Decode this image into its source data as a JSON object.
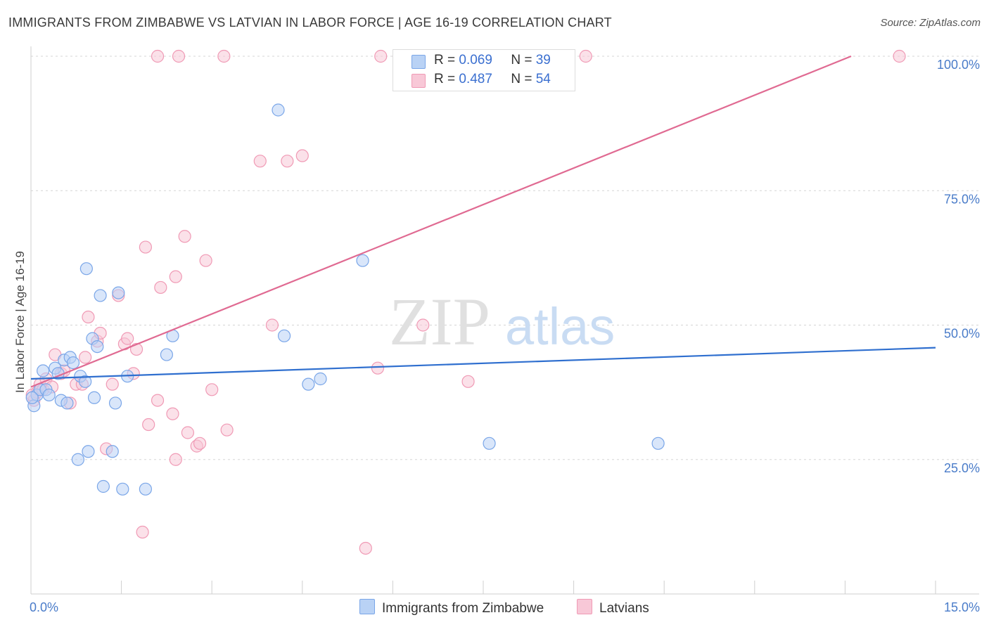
{
  "title": "IMMIGRANTS FROM ZIMBABWE VS LATVIAN IN LABOR FORCE | AGE 16-19 CORRELATION CHART",
  "source": "Source: ZipAtlas.com",
  "watermark": {
    "zip": "ZIP",
    "atlas": "atlas"
  },
  "colors": {
    "blue": "#7aa6e8",
    "blue_fill": "#b9d2f5",
    "blue_line": "#2f6fcf",
    "pink": "#f09ab5",
    "pink_fill": "#f8c8d7",
    "pink_line": "#e06a92"
  },
  "legend": [
    {
      "r_label": "R =",
      "r_value": "0.069",
      "n_label": "N =",
      "n_value": "39"
    },
    {
      "r_label": "R =",
      "r_value": "0.487",
      "n_label": "N =",
      "n_value": "54"
    }
  ],
  "bottom_legend": [
    "Immigrants from Zimbabwe",
    "Latvians"
  ],
  "chart_data": {
    "type": "scatter",
    "title": "IMMIGRANTS FROM ZIMBABWE VS LATVIAN IN LABOR FORCE | AGE 16-19 CORRELATION CHART",
    "xlabel": "",
    "ylabel": "In Labor Force | Age 16-19",
    "xlim": [
      0,
      15
    ],
    "ylim": [
      0,
      100
    ],
    "x_tick_labels": [
      "0.0%",
      "15.0%"
    ],
    "y_ticks": [
      25,
      50,
      75,
      100
    ],
    "y_tick_labels": [
      "25.0%",
      "50.0%",
      "75.0%",
      "100.0%"
    ],
    "grid": true,
    "legend_position": "top-center",
    "series": [
      {
        "name": "Immigrants from Zimbabwe",
        "trend": {
          "x": [
            0,
            15
          ],
          "y": [
            40.0,
            45.8
          ]
        },
        "points": [
          [
            0.05,
            35.0
          ],
          [
            0.1,
            37.0
          ],
          [
            0.15,
            38.0
          ],
          [
            0.2,
            41.5
          ],
          [
            0.25,
            38.0
          ],
          [
            0.3,
            37.0
          ],
          [
            0.4,
            42.0
          ],
          [
            0.45,
            41.0
          ],
          [
            0.5,
            36.0
          ],
          [
            0.55,
            43.5
          ],
          [
            0.6,
            35.5
          ],
          [
            0.65,
            44.0
          ],
          [
            0.7,
            43.0
          ],
          [
            0.78,
            25.0
          ],
          [
            0.82,
            40.5
          ],
          [
            0.9,
            39.5
          ],
          [
            0.92,
            60.5
          ],
          [
            0.95,
            26.5
          ],
          [
            1.05,
            36.5
          ],
          [
            1.02,
            47.5
          ],
          [
            1.1,
            46.0
          ],
          [
            1.15,
            55.5
          ],
          [
            1.2,
            20.0
          ],
          [
            1.35,
            26.5
          ],
          [
            1.4,
            35.5
          ],
          [
            1.45,
            56.0
          ],
          [
            1.52,
            19.5
          ],
          [
            1.6,
            40.5
          ],
          [
            1.9,
            19.5
          ],
          [
            2.25,
            44.5
          ],
          [
            2.35,
            48.0
          ],
          [
            4.1,
            90.0
          ],
          [
            4.2,
            48.0
          ],
          [
            4.6,
            39.0
          ],
          [
            4.8,
            40.0
          ],
          [
            5.5,
            62.0
          ],
          [
            7.6,
            28.0
          ],
          [
            10.4,
            28.0
          ],
          [
            0.02,
            36.5
          ]
        ]
      },
      {
        "name": "Latvians",
        "trend": {
          "x": [
            0,
            13.6
          ],
          "y": [
            38.5,
            100
          ]
        },
        "points": [
          [
            0.05,
            36.0
          ],
          [
            0.1,
            37.5
          ],
          [
            0.15,
            39.0
          ],
          [
            0.2,
            38.0
          ],
          [
            0.25,
            40.0
          ],
          [
            0.35,
            38.5
          ],
          [
            0.4,
            44.5
          ],
          [
            0.5,
            41.0
          ],
          [
            0.55,
            41.5
          ],
          [
            0.65,
            35.5
          ],
          [
            0.75,
            39.0
          ],
          [
            0.85,
            39.0
          ],
          [
            0.9,
            44.0
          ],
          [
            0.95,
            51.5
          ],
          [
            1.1,
            47.0
          ],
          [
            1.15,
            48.5
          ],
          [
            1.25,
            27.0
          ],
          [
            1.35,
            39.0
          ],
          [
            1.45,
            55.5
          ],
          [
            1.55,
            46.5
          ],
          [
            1.6,
            47.5
          ],
          [
            1.7,
            41.0
          ],
          [
            1.75,
            45.5
          ],
          [
            1.85,
            11.5
          ],
          [
            1.9,
            64.5
          ],
          [
            1.95,
            31.5
          ],
          [
            2.1,
            36.0
          ],
          [
            2.15,
            57.0
          ],
          [
            2.35,
            33.5
          ],
          [
            2.4,
            59.0
          ],
          [
            2.4,
            25.0
          ],
          [
            2.55,
            66.5
          ],
          [
            2.6,
            30.0
          ],
          [
            2.75,
            27.5
          ],
          [
            2.8,
            28.0
          ],
          [
            2.9,
            62.0
          ],
          [
            3.0,
            38.0
          ],
          [
            3.25,
            30.5
          ],
          [
            3.8,
            80.5
          ],
          [
            4.0,
            50.0
          ],
          [
            4.25,
            80.5
          ],
          [
            4.5,
            81.5
          ],
          [
            5.55,
            8.5
          ],
          [
            5.75,
            42.0
          ],
          [
            6.5,
            50.0
          ],
          [
            7.25,
            39.5
          ],
          [
            2.1,
            100.0
          ],
          [
            2.45,
            100.0
          ],
          [
            3.2,
            100.0
          ],
          [
            5.8,
            100.0
          ],
          [
            6.1,
            100.0
          ],
          [
            9.2,
            100.0
          ],
          [
            14.4,
            100.0
          ],
          [
            0.02,
            37.0
          ]
        ]
      }
    ]
  }
}
